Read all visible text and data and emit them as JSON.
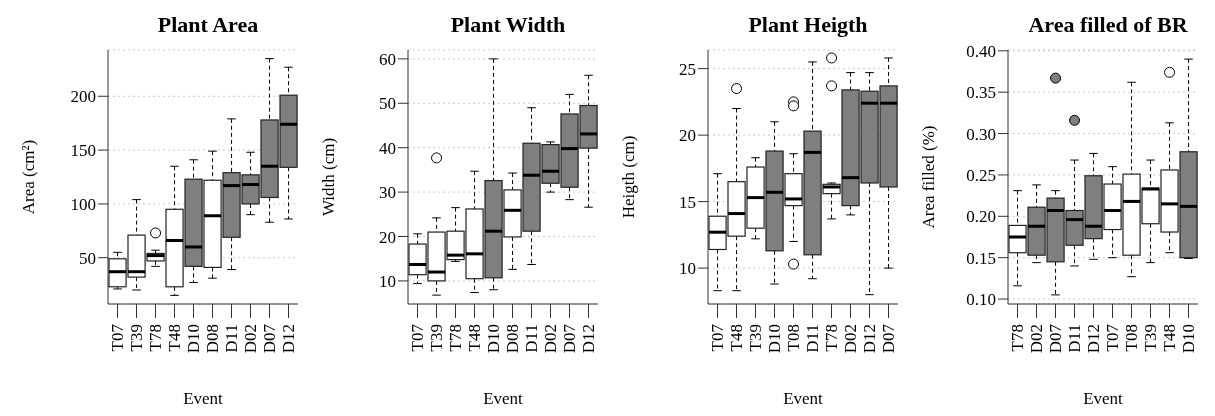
{
  "chart_data": [
    {
      "type": "box",
      "title": "Plant Area",
      "xlabel": "Event",
      "ylabel": "Area (cm²)",
      "categories": [
        "T07",
        "T39",
        "T78",
        "T48",
        "D10",
        "D08",
        "D11",
        "D02",
        "D07",
        "D12"
      ],
      "colors": [
        "#ffffff",
        "#ffffff",
        "#ffffff",
        "#ffffff",
        "#7f7f7f",
        "#ffffff",
        "#7f7f7f",
        "#7f7f7f",
        "#7f7f7f",
        "#7f7f7f"
      ],
      "boxes": [
        {
          "low": 21,
          "q1": 23,
          "median": 37,
          "q3": 49,
          "high": 55
        },
        {
          "low": 20,
          "q1": 32,
          "median": 37,
          "q3": 71,
          "high": 104
        },
        {
          "low": 42,
          "q1": 47,
          "median": 52,
          "q3": 54,
          "high": 57,
          "outliers": [
            73
          ]
        },
        {
          "low": 15,
          "q1": 23,
          "median": 66,
          "q3": 95,
          "high": 135
        },
        {
          "low": 27,
          "q1": 42,
          "median": 60,
          "q3": 123,
          "high": 141
        },
        {
          "low": 31,
          "q1": 41,
          "median": 89,
          "q3": 122,
          "high": 149
        },
        {
          "low": 39,
          "q1": 69,
          "median": 117,
          "q3": 129,
          "high": 179
        },
        {
          "low": 90,
          "q1": 100,
          "median": 118,
          "q3": 127,
          "high": 148
        },
        {
          "low": 83,
          "q1": 106,
          "median": 135,
          "q3": 178,
          "high": 235
        },
        {
          "low": 86,
          "q1": 134,
          "median": 174,
          "q3": 201,
          "high": 227
        }
      ],
      "ylim": [
        7,
        243
      ],
      "yticks": [
        50,
        100,
        150,
        200
      ],
      "grid": "y"
    },
    {
      "type": "box",
      "title": "Plant Width",
      "xlabel": "Event",
      "ylabel": "Width (cm)",
      "categories": [
        "T07",
        "T39",
        "T78",
        "T48",
        "D10",
        "D08",
        "D11",
        "D02",
        "D07",
        "D12"
      ],
      "colors": [
        "#ffffff",
        "#ffffff",
        "#ffffff",
        "#ffffff",
        "#7f7f7f",
        "#ffffff",
        "#7f7f7f",
        "#7f7f7f",
        "#7f7f7f",
        "#7f7f7f"
      ],
      "boxes": [
        {
          "low": 9.4,
          "q1": 11.4,
          "median": 13.7,
          "q3": 18.3,
          "high": 20.6
        },
        {
          "low": 6.8,
          "q1": 10,
          "median": 12,
          "q3": 21,
          "high": 24.2,
          "outliers": [
            37.7
          ]
        },
        {
          "low": 14.4,
          "q1": 14.8,
          "median": 15.8,
          "q3": 21.2,
          "high": 26.5
        },
        {
          "low": 7.4,
          "q1": 10.5,
          "median": 16.1,
          "q3": 26.2,
          "high": 34.7
        },
        {
          "low": 8,
          "q1": 10.7,
          "median": 21.2,
          "q3": 32.6,
          "high": 60
        },
        {
          "low": 12.6,
          "q1": 19.9,
          "median": 25.9,
          "q3": 30.5,
          "high": 34.3
        },
        {
          "low": 13.7,
          "q1": 21.2,
          "median": 33.8,
          "q3": 41,
          "high": 49
        },
        {
          "low": 30,
          "q1": 32,
          "median": 34.7,
          "q3": 40.7,
          "high": 41.3
        },
        {
          "low": 28.3,
          "q1": 31.1,
          "median": 39.8,
          "q3": 47.6,
          "high": 52
        },
        {
          "low": 26.6,
          "q1": 39.9,
          "median": 43.1,
          "q3": 49.5,
          "high": 56.3
        }
      ],
      "ylim": [
        4.8,
        62
      ],
      "yticks": [
        10,
        20,
        30,
        40,
        50,
        60
      ],
      "grid": "y"
    },
    {
      "type": "box",
      "title": "Plant Heigth",
      "xlabel": "Event",
      "ylabel": "Heigth (cm)",
      "categories": [
        "T07",
        "T48",
        "T39",
        "D10",
        "T08",
        "D11",
        "T78",
        "D02",
        "D12",
        "D07"
      ],
      "colors": [
        "#ffffff",
        "#ffffff",
        "#ffffff",
        "#7f7f7f",
        "#ffffff",
        "#7f7f7f",
        "#ffffff",
        "#7f7f7f",
        "#7f7f7f",
        "#7f7f7f"
      ],
      "boxes": [
        {
          "low": 8.3,
          "q1": 11.4,
          "median": 12.7,
          "q3": 13.9,
          "high": 17.1
        },
        {
          "low": 8.3,
          "q1": 12.4,
          "median": 14.1,
          "q3": 16.5,
          "high": 22,
          "outliers": [
            23.5
          ]
        },
        {
          "low": 12.2,
          "q1": 13,
          "median": 15.3,
          "q3": 17.6,
          "high": 18.3
        },
        {
          "low": 8.8,
          "q1": 11.3,
          "median": 15.7,
          "q3": 18.8,
          "high": 21
        },
        {
          "low": 12,
          "q1": 14.7,
          "median": 15.2,
          "q3": 17.1,
          "high": 18.6,
          "outliers": [
            22.5,
            22.2,
            10.3
          ]
        },
        {
          "low": 9.2,
          "q1": 11,
          "median": 18.7,
          "q3": 20.3,
          "high": 25.5
        },
        {
          "low": 13.7,
          "q1": 15.6,
          "median": 16.1,
          "q3": 16.3,
          "high": 16.4,
          "outliers": [
            25.8,
            23.7
          ]
        },
        {
          "low": 14,
          "q1": 14.7,
          "median": 16.8,
          "q3": 23.4,
          "high": 24.7
        },
        {
          "low": 8,
          "q1": 16.4,
          "median": 22.4,
          "q3": 23.3,
          "high": 24.7
        },
        {
          "low": 10,
          "q1": 16.1,
          "median": 22.4,
          "q3": 23.7,
          "high": 25.8
        }
      ],
      "ylim": [
        7.3,
        26.4
      ],
      "yticks": [
        10,
        15,
        20,
        25
      ],
      "grid": "y"
    },
    {
      "type": "box",
      "title": "Area filled of BR",
      "xlabel": "Event",
      "ylabel": "Area filled (%)",
      "categories": [
        "T78",
        "D02",
        "D07",
        "D11",
        "D12",
        "T07",
        "T08",
        "T39",
        "T48",
        "D10"
      ],
      "colors": [
        "#ffffff",
        "#7f7f7f",
        "#7f7f7f",
        "#7f7f7f",
        "#7f7f7f",
        "#ffffff",
        "#ffffff",
        "#ffffff",
        "#ffffff",
        "#7f7f7f"
      ],
      "boxes": [
        {
          "low": 0.116,
          "q1": 0.156,
          "median": 0.175,
          "q3": 0.189,
          "high": 0.231
        },
        {
          "low": 0.144,
          "q1": 0.153,
          "median": 0.188,
          "q3": 0.211,
          "high": 0.238
        },
        {
          "low": 0.105,
          "q1": 0.145,
          "median": 0.207,
          "q3": 0.222,
          "high": 0.231,
          "outliers": [
            0.367
          ]
        },
        {
          "low": 0.14,
          "q1": 0.165,
          "median": 0.196,
          "q3": 0.207,
          "high": 0.268,
          "outliers": [
            0.316
          ]
        },
        {
          "low": 0.148,
          "q1": 0.173,
          "median": 0.188,
          "q3": 0.249,
          "high": 0.276
        },
        {
          "low": 0.15,
          "q1": 0.184,
          "median": 0.207,
          "q3": 0.239,
          "high": 0.26
        },
        {
          "low": 0.127,
          "q1": 0.153,
          "median": 0.218,
          "q3": 0.251,
          "high": 0.362
        },
        {
          "low": 0.144,
          "q1": 0.191,
          "median": 0.233,
          "q3": 0.234,
          "high": 0.268
        },
        {
          "low": 0.156,
          "q1": 0.181,
          "median": 0.215,
          "q3": 0.256,
          "high": 0.313,
          "outliers": [
            0.374
          ]
        },
        {
          "low": 0.149,
          "q1": 0.15,
          "median": 0.212,
          "q3": 0.278,
          "high": 0.39
        }
      ],
      "ylim": [
        0.094,
        0.401
      ],
      "yticks": [
        {
          "value": 0.1,
          "label": "0.10"
        },
        {
          "value": 0.15,
          "label": "0.15"
        },
        {
          "value": 0.2,
          "label": "0.20"
        },
        {
          "value": 0.25,
          "label": "0.25"
        },
        {
          "value": 0.3,
          "label": "0.30"
        },
        {
          "value": 0.35,
          "label": "0.35"
        },
        {
          "value": 0.4,
          "label": "0.40"
        }
      ],
      "grid": "y"
    }
  ]
}
